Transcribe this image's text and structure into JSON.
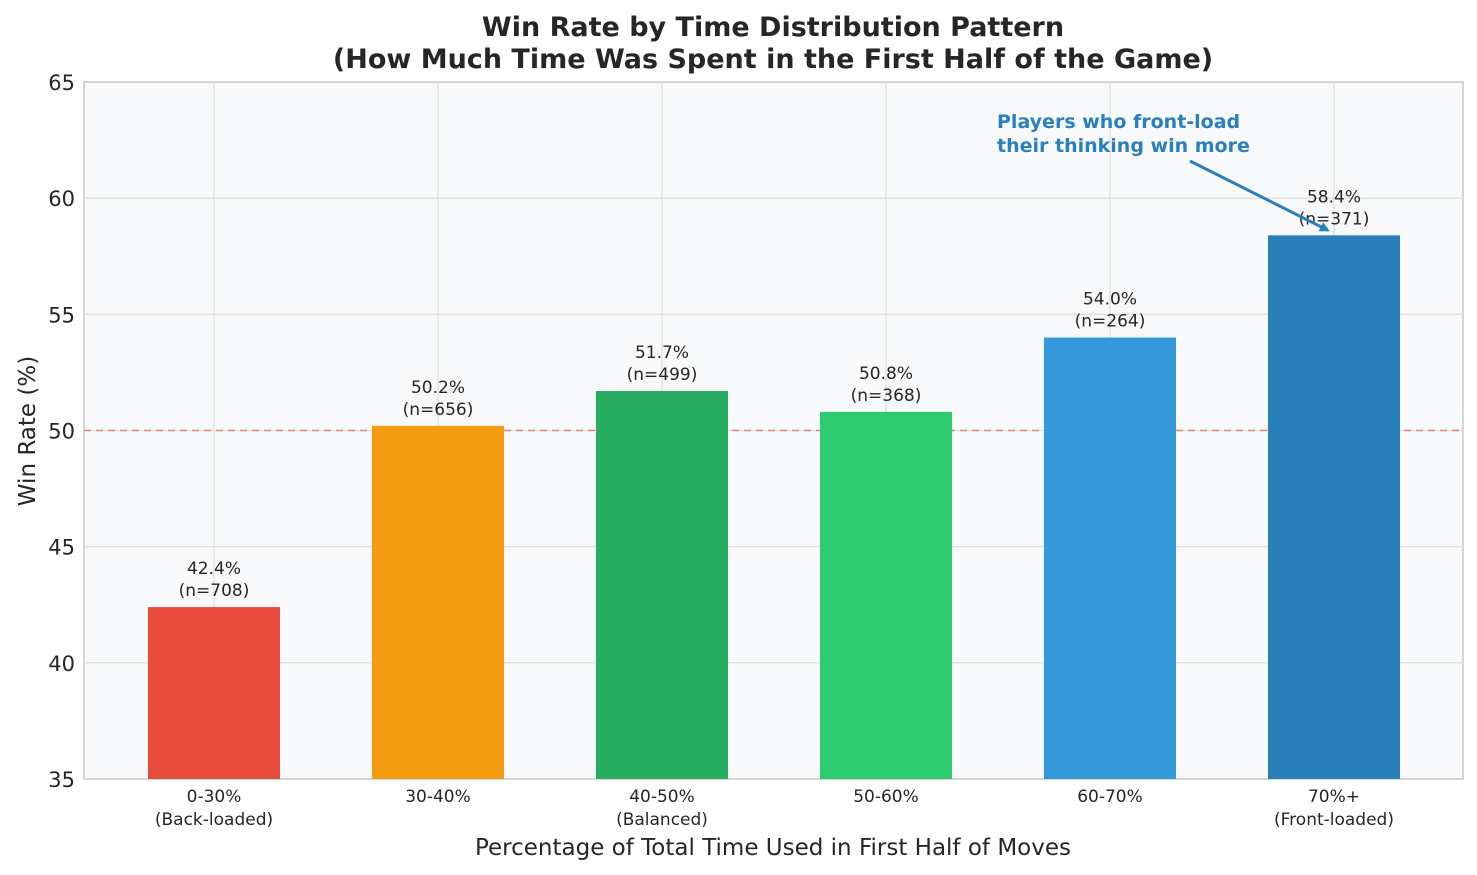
{
  "chart_data": {
    "type": "bar",
    "title": "Win Rate by Time Distribution Pattern",
    "subtitle": "(How Much Time Was Spent in the First Half of the Game)",
    "xlabel": "Percentage of Total Time Used in First Half of Moves",
    "ylabel": "Win Rate (%)",
    "ylim": [
      35,
      65
    ],
    "yticks": [
      35,
      40,
      45,
      50,
      55,
      60,
      65
    ],
    "grid": true,
    "reference_line": {
      "y": 50,
      "color": "#e74c3c",
      "style": "dashed"
    },
    "categories": [
      {
        "line1": "0-30%",
        "line2": "(Back-loaded)"
      },
      {
        "line1": "30-40%",
        "line2": ""
      },
      {
        "line1": "40-50%",
        "line2": "(Balanced)"
      },
      {
        "line1": "50-60%",
        "line2": ""
      },
      {
        "line1": "60-70%",
        "line2": ""
      },
      {
        "line1": "70%+",
        "line2": "(Front-loaded)"
      }
    ],
    "values": [
      42.4,
      50.2,
      51.7,
      50.8,
      54.0,
      58.4
    ],
    "value_labels": [
      "42.4%",
      "50.2%",
      "51.7%",
      "50.8%",
      "54.0%",
      "58.4%"
    ],
    "counts": [
      "(n=708)",
      "(n=656)",
      "(n=499)",
      "(n=368)",
      "(n=264)",
      "(n=371)"
    ],
    "colors": [
      "#e74c3c",
      "#f39c12",
      "#27ae60",
      "#2ecc71",
      "#3498db",
      "#2980b9"
    ],
    "annotation": {
      "line1": "Players who front-load",
      "line2": "their thinking win more",
      "target_category_index": 5,
      "color": "#2a7fbe"
    }
  }
}
